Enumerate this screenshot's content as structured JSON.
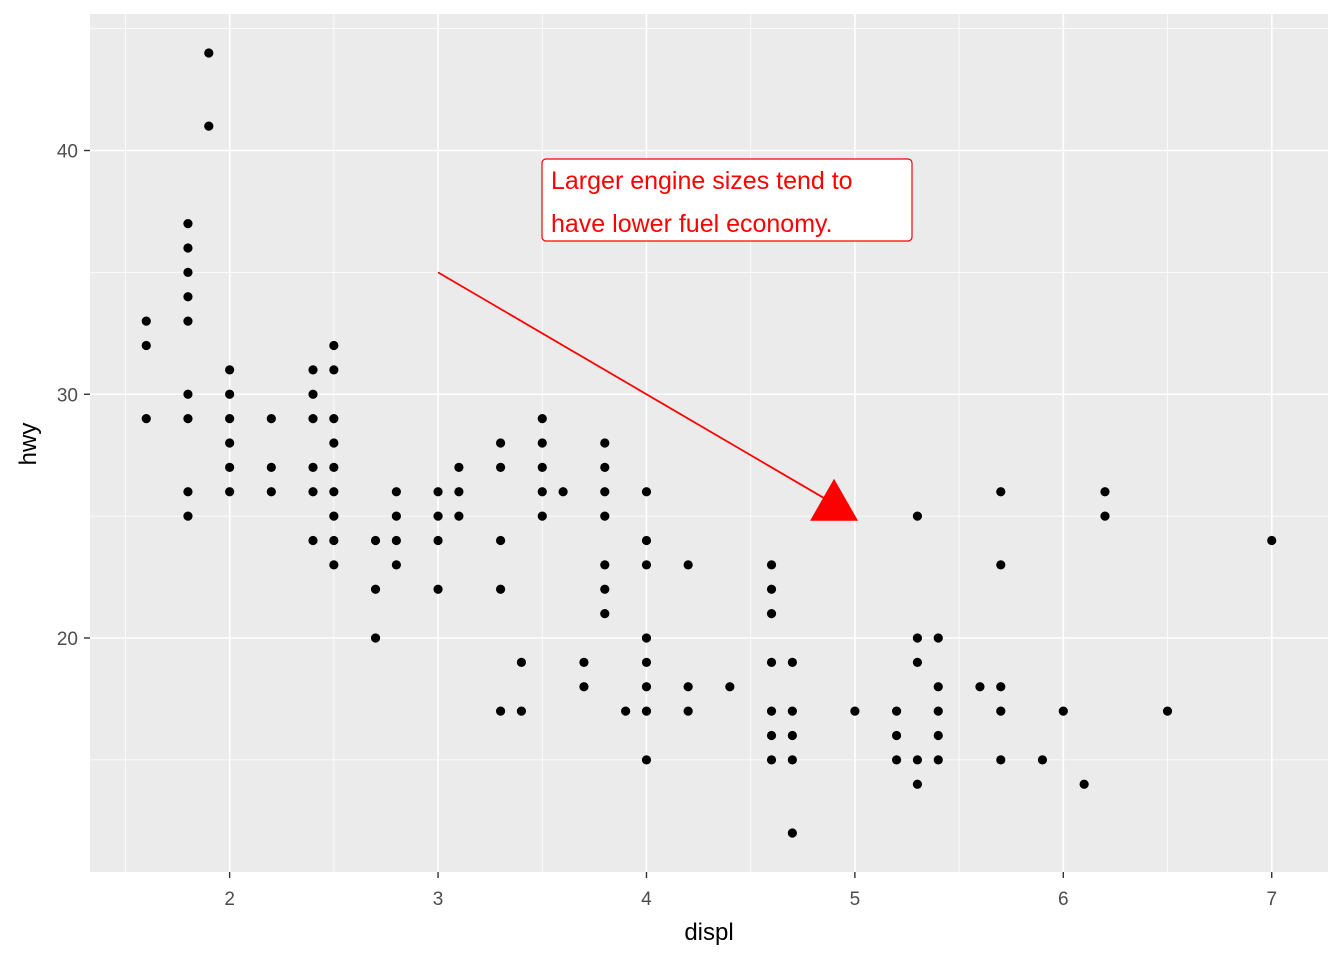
{
  "chart_data": {
    "type": "scatter",
    "xlabel": "displ",
    "ylabel": "hwy",
    "xlim": [
      1.33,
      7.27
    ],
    "ylim": [
      10.4,
      45.6
    ],
    "x_ticks": [
      2,
      3,
      4,
      5,
      6,
      7
    ],
    "x_tick_labels": [
      "2",
      "3",
      "4",
      "5",
      "6",
      "7"
    ],
    "y_ticks": [
      20,
      30,
      40
    ],
    "y_tick_labels": [
      "20",
      "30",
      "40"
    ],
    "grid": true,
    "background": "#ebebeb",
    "point_color": "#000000",
    "points": [
      [
        1.6,
        33
      ],
      [
        1.6,
        32
      ],
      [
        1.6,
        29
      ],
      [
        1.8,
        37
      ],
      [
        1.8,
        36
      ],
      [
        1.8,
        35
      ],
      [
        1.8,
        34
      ],
      [
        1.8,
        33
      ],
      [
        1.8,
        30
      ],
      [
        1.8,
        29
      ],
      [
        1.8,
        26
      ],
      [
        1.8,
        25
      ],
      [
        1.9,
        44
      ],
      [
        1.9,
        41
      ],
      [
        2.0,
        31
      ],
      [
        2.0,
        30
      ],
      [
        2.0,
        29
      ],
      [
        2.0,
        28
      ],
      [
        2.0,
        27
      ],
      [
        2.0,
        26
      ],
      [
        2.2,
        29
      ],
      [
        2.2,
        27
      ],
      [
        2.2,
        26
      ],
      [
        2.4,
        31
      ],
      [
        2.4,
        30
      ],
      [
        2.4,
        29
      ],
      [
        2.4,
        27
      ],
      [
        2.4,
        26
      ],
      [
        2.4,
        24
      ],
      [
        2.5,
        32
      ],
      [
        2.5,
        31
      ],
      [
        2.5,
        29
      ],
      [
        2.5,
        28
      ],
      [
        2.5,
        27
      ],
      [
        2.5,
        26
      ],
      [
        2.5,
        25
      ],
      [
        2.5,
        24
      ],
      [
        2.5,
        23
      ],
      [
        2.7,
        24
      ],
      [
        2.7,
        22
      ],
      [
        2.7,
        20
      ],
      [
        2.8,
        26
      ],
      [
        2.8,
        25
      ],
      [
        2.8,
        24
      ],
      [
        2.8,
        23
      ],
      [
        3.0,
        26
      ],
      [
        3.0,
        25
      ],
      [
        3.0,
        24
      ],
      [
        3.0,
        22
      ],
      [
        3.1,
        27
      ],
      [
        3.1,
        26
      ],
      [
        3.1,
        25
      ],
      [
        3.3,
        28
      ],
      [
        3.3,
        27
      ],
      [
        3.3,
        24
      ],
      [
        3.3,
        22
      ],
      [
        3.3,
        17
      ],
      [
        3.4,
        19
      ],
      [
        3.4,
        17
      ],
      [
        3.5,
        29
      ],
      [
        3.5,
        28
      ],
      [
        3.5,
        27
      ],
      [
        3.5,
        26
      ],
      [
        3.5,
        25
      ],
      [
        3.6,
        26
      ],
      [
        3.7,
        19
      ],
      [
        3.7,
        18
      ],
      [
        3.8,
        28
      ],
      [
        3.8,
        27
      ],
      [
        3.8,
        26
      ],
      [
        3.8,
        25
      ],
      [
        3.8,
        23
      ],
      [
        3.8,
        22
      ],
      [
        3.8,
        21
      ],
      [
        3.9,
        17
      ],
      [
        4.0,
        26
      ],
      [
        4.0,
        24
      ],
      [
        4.0,
        23
      ],
      [
        4.0,
        20
      ],
      [
        4.0,
        19
      ],
      [
        4.0,
        18
      ],
      [
        4.0,
        17
      ],
      [
        4.0,
        15
      ],
      [
        4.2,
        23
      ],
      [
        4.2,
        18
      ],
      [
        4.2,
        17
      ],
      [
        4.4,
        18
      ],
      [
        4.6,
        23
      ],
      [
        4.6,
        22
      ],
      [
        4.6,
        21
      ],
      [
        4.6,
        19
      ],
      [
        4.6,
        17
      ],
      [
        4.6,
        16
      ],
      [
        4.6,
        15
      ],
      [
        4.7,
        19
      ],
      [
        4.7,
        17
      ],
      [
        4.7,
        16
      ],
      [
        4.7,
        15
      ],
      [
        4.7,
        12
      ],
      [
        5.0,
        17
      ],
      [
        5.2,
        17
      ],
      [
        5.2,
        16
      ],
      [
        5.2,
        15
      ],
      [
        5.3,
        25
      ],
      [
        5.3,
        20
      ],
      [
        5.3,
        19
      ],
      [
        5.3,
        15
      ],
      [
        5.3,
        14
      ],
      [
        5.4,
        20
      ],
      [
        5.4,
        18
      ],
      [
        5.4,
        17
      ],
      [
        5.4,
        16
      ],
      [
        5.4,
        15
      ],
      [
        5.6,
        18
      ],
      [
        5.7,
        26
      ],
      [
        5.7,
        23
      ],
      [
        5.7,
        18
      ],
      [
        5.7,
        17
      ],
      [
        5.7,
        15
      ],
      [
        5.9,
        15
      ],
      [
        6.0,
        17
      ],
      [
        6.1,
        14
      ],
      [
        6.2,
        26
      ],
      [
        6.2,
        25
      ],
      [
        6.5,
        17
      ],
      [
        7.0,
        24
      ]
    ],
    "annotation": {
      "label_lines": [
        "Larger engine sizes tend to",
        "have lower fuel economy."
      ],
      "color": "#ff0000",
      "arrow_from": [
        3.0,
        35
      ],
      "arrow_to": [
        4.9,
        25.5
      ]
    }
  }
}
